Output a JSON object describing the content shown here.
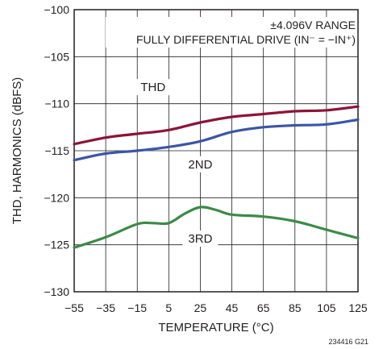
{
  "chart_data": {
    "type": "line",
    "annotation": [
      "±4.096V RANGE",
      "FULLY DIFFERENTIAL DRIVE (IN⁻ = −IN⁺)"
    ],
    "xlabel": "TEMPERATURE  (°C)",
    "ylabel": "THD, HARMONICS (dBFS)",
    "xlim": [
      -55,
      125
    ],
    "ylim": [
      -130,
      -100
    ],
    "x_ticks": [
      -55,
      -35,
      -15,
      5,
      25,
      45,
      65,
      85,
      105,
      125
    ],
    "x_tick_labels": [
      "−55",
      "−35",
      "−15",
      "5",
      "25",
      "45",
      "65",
      "85",
      "105",
      "125"
    ],
    "y_ticks": [
      -130,
      -125,
      -120,
      -115,
      -110,
      -105,
      -100
    ],
    "y_tick_labels": [
      "−130",
      "−125",
      "−120",
      "−115",
      "−110",
      "−105",
      "−100"
    ],
    "grid": true,
    "figure_id": "234416 G21",
    "series": [
      {
        "name": "THD",
        "color": "#8b1538",
        "x": [
          -55,
          -35,
          -15,
          5,
          25,
          45,
          65,
          85,
          105,
          125
        ],
        "y": [
          -114.3,
          -113.6,
          -113.2,
          -112.8,
          -112.0,
          -111.4,
          -111.1,
          -110.8,
          -110.7,
          -110.3
        ]
      },
      {
        "name": "2ND",
        "color": "#3a56a5",
        "x": [
          -55,
          -35,
          -15,
          5,
          25,
          45,
          65,
          85,
          105,
          125
        ],
        "y": [
          -116.0,
          -115.3,
          -115.0,
          -114.6,
          -114.0,
          -113.0,
          -112.5,
          -112.3,
          -112.2,
          -111.7
        ]
      },
      {
        "name": "3RD",
        "color": "#3b8b45",
        "x": [
          -55,
          -35,
          -15,
          -5,
          5,
          15,
          25,
          35,
          45,
          65,
          85,
          105,
          125
        ],
        "y": [
          -125.3,
          -124.2,
          -122.8,
          -122.7,
          -122.7,
          -121.7,
          -121.0,
          -121.3,
          -121.8,
          -122.0,
          -122.5,
          -123.4,
          -124.3
        ]
      }
    ]
  }
}
